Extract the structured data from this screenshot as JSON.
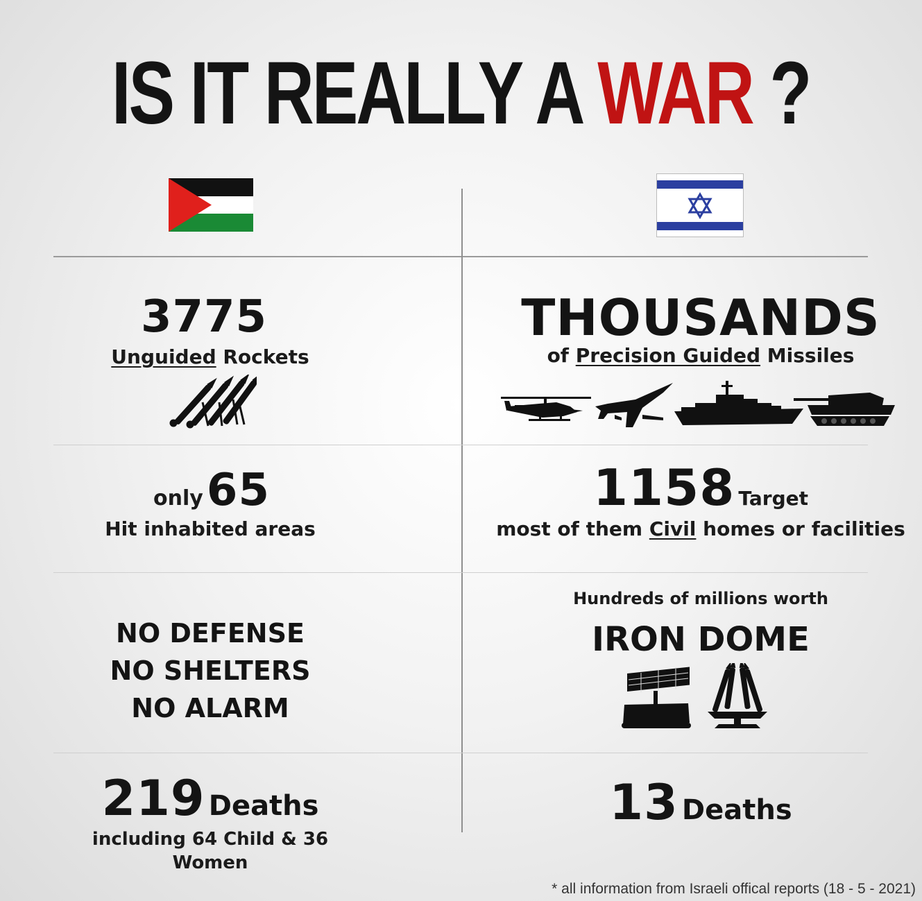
{
  "title": {
    "part1": "IS IT REALLY A",
    "part2": "WAR",
    "part3": "?"
  },
  "colors": {
    "accent_red": "#c01313",
    "text": "#141414"
  },
  "palestine": {
    "flag_icon": "palestine-flag-icon",
    "weapons": {
      "count": "3775",
      "label_underlined": "Unguided",
      "label_rest": "Rockets",
      "icon": "rocket-launcher-icon"
    },
    "hits": {
      "prefix": "only",
      "count": "65",
      "label": "Hit inhabited areas"
    },
    "defense": {
      "lines": [
        "NO DEFENSE",
        "NO SHELTERS",
        "NO ALARM"
      ]
    },
    "deaths": {
      "count": "219",
      "label": "Deaths",
      "detail": "including 64 Child & 36 Women"
    }
  },
  "israel": {
    "flag_icon": "israel-flag-icon",
    "weapons": {
      "count": "THOUSANDS",
      "label_prefix": "of",
      "label_underlined": "Precision Guided",
      "label_rest": "Missiles",
      "icons": [
        "attack-helicopter-icon",
        "fighter-jet-icon",
        "warship-icon",
        "tank-icon"
      ]
    },
    "targets": {
      "count": "1158",
      "label": "Target",
      "detail_prefix": "most of them",
      "detail_underlined": "Civil",
      "detail_rest": "homes or facilities"
    },
    "defense": {
      "worth": "Hundreds of millions worth",
      "name": "IRON DOME",
      "icons": [
        "radar-vehicle-icon",
        "missile-launcher-icon"
      ]
    },
    "deaths": {
      "count": "13",
      "label": "Deaths"
    }
  },
  "footnote": "* all information from Israeli offical reports (18 - 5 - 2021)"
}
